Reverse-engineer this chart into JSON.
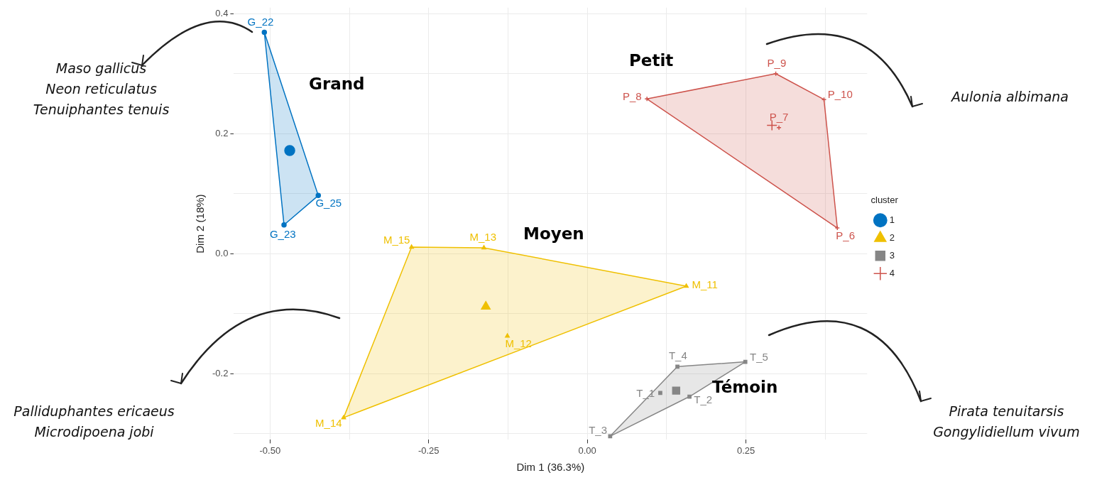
{
  "chart_data": {
    "type": "scatter",
    "xlabel": "Dim 1 (36.3%)",
    "ylabel": "Dim 2 (18%)",
    "legend_title": "cluster",
    "legend": "right",
    "grid": true,
    "xlim": [
      -0.557,
      0.441
    ],
    "ylim": [
      -0.31,
      0.41
    ],
    "xticks": [
      {
        "value": -0.5,
        "label": "-0.50"
      },
      {
        "value": -0.375,
        "label": null
      },
      {
        "value": -0.25,
        "label": "-0.25"
      },
      {
        "value": -0.125,
        "label": null
      },
      {
        "value": 0,
        "label": "0.00"
      },
      {
        "value": 0.125,
        "label": null
      },
      {
        "value": 0.25,
        "label": "0.25"
      },
      {
        "value": 0.375,
        "label": null
      }
    ],
    "yticks": [
      {
        "value": -0.3,
        "label": null
      },
      {
        "value": -0.2,
        "label": "-0.2"
      },
      {
        "value": -0.1,
        "label": null
      },
      {
        "value": 0,
        "label": "0.0"
      },
      {
        "value": 0.1,
        "label": null
      },
      {
        "value": 0.2,
        "label": "0.2"
      },
      {
        "value": 0.3,
        "label": null
      },
      {
        "value": 0.4,
        "label": "0.4"
      }
    ],
    "series": [
      {
        "type": "area",
        "marker": "none",
        "color": "#0073c2",
        "x": [
          -0.509,
          -0.424,
          -0.478
        ],
        "values": [
          0.369,
          0.097,
          0.048
        ]
      },
      {
        "type": "area",
        "marker": "none",
        "color": "#efc000",
        "x": [
          -0.277,
          -0.163,
          0.156,
          -0.384
        ],
        "values": [
          0.011,
          0.01,
          -0.054,
          -0.273
        ]
      },
      {
        "type": "area",
        "marker": "none",
        "color": "#868686",
        "x": [
          0.036,
          0.142,
          0.249,
          0.161
        ],
        "values": [
          -0.304,
          -0.188,
          -0.18,
          -0.238
        ]
      },
      {
        "type": "area",
        "marker": "none",
        "color": "#cd534c",
        "x": [
          0.094,
          0.297,
          0.373,
          0.394
        ],
        "values": [
          0.258,
          0.3,
          0.257,
          0.043
        ]
      },
      {
        "name": "1",
        "marker": "circle",
        "color": "#0073c2",
        "x": [
          -0.509,
          -0.478,
          -0.424
        ],
        "values": [
          0.369,
          0.048,
          0.097
        ]
      },
      {
        "name": "2",
        "marker": "triangle",
        "color": "#efc000",
        "x": [
          0.156,
          -0.126,
          -0.163,
          -0.384,
          -0.277
        ],
        "values": [
          -0.054,
          -0.137,
          0.01,
          -0.273,
          0.011
        ]
      },
      {
        "name": "3",
        "marker": "square",
        "color": "#868686",
        "x": [
          0.115,
          0.161,
          0.036,
          0.142,
          0.249
        ],
        "values": [
          -0.232,
          -0.238,
          -0.304,
          -0.188,
          -0.18
        ]
      },
      {
        "name": "4",
        "marker": "cross",
        "color": "#cd534c",
        "x": [
          0.394,
          0.302,
          0.094,
          0.297,
          0.373
        ],
        "values": [
          0.043,
          0.21,
          0.258,
          0.3,
          0.257
        ]
      },
      {
        "marker": "circle",
        "color": "#0073c2",
        "x": [
          -0.469
        ],
        "values": [
          0.172
        ]
      },
      {
        "marker": "triangle",
        "color": "#efc000",
        "x": [
          -0.16
        ],
        "values": [
          -0.088
        ]
      },
      {
        "marker": "square",
        "color": "#868686",
        "x": [
          0.14
        ],
        "values": [
          -0.228
        ]
      },
      {
        "marker": "cross",
        "color": "#cd534c",
        "x": [
          0.291
        ],
        "values": [
          0.214
        ]
      }
    ],
    "annotations": [
      "Grand",
      "Petit",
      "Moyen",
      "Témoin",
      "Maso gallicus\nNeon reticulatus\nTenuiphantes tenuis",
      "Aulonia albimana",
      "Palliduphantes ericaeus\nMicrodipoena jobi",
      "Pirata tenuitarsis\nGongylidiellum vivum",
      {
        "text": "G_22",
        "x": -0.509,
        "y": 0.369
      },
      {
        "text": "G_23",
        "x": -0.478,
        "y": 0.048
      },
      {
        "text": "G_25",
        "x": -0.424,
        "y": 0.097
      },
      {
        "text": "M_11",
        "x": 0.156,
        "y": -0.054
      },
      {
        "text": "M_12",
        "x": -0.126,
        "y": -0.137
      },
      {
        "text": "M_13",
        "x": -0.163,
        "y": 0.01
      },
      {
        "text": "M_14",
        "x": -0.384,
        "y": -0.273
      },
      {
        "text": "M_15",
        "x": -0.277,
        "y": 0.011
      },
      {
        "text": "T_1",
        "x": 0.115,
        "y": -0.232
      },
      {
        "text": "T_2",
        "x": 0.161,
        "y": -0.238
      },
      {
        "text": "T_3",
        "x": 0.036,
        "y": -0.304
      },
      {
        "text": "T_4",
        "x": 0.142,
        "y": -0.188
      },
      {
        "text": "T_5",
        "x": 0.249,
        "y": -0.18
      },
      {
        "text": "P_6",
        "x": 0.394,
        "y": 0.043
      },
      {
        "text": "P_7",
        "x": 0.302,
        "y": 0.21
      },
      {
        "text": "P_8",
        "x": 0.094,
        "y": 0.258
      },
      {
        "text": "P_9",
        "x": 0.297,
        "y": 0.3
      },
      {
        "text": "P_10",
        "x": 0.373,
        "y": 0.257
      }
    ]
  }
}
